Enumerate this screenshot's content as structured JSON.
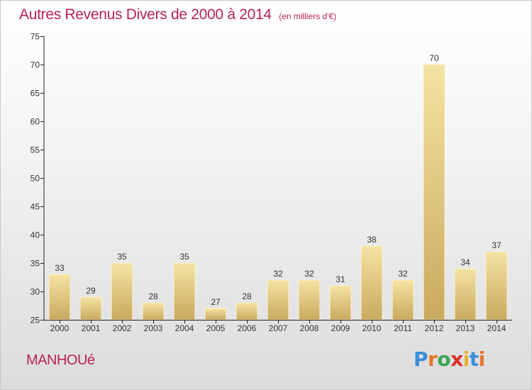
{
  "title": "Autres Revenus Divers de 2000 à 2014",
  "subtitle": "(en milliers d'€)",
  "commune": "MANHOUé",
  "logo": {
    "text": "Proxiti",
    "letters": [
      "P",
      "r",
      "o",
      "x",
      "i",
      "t",
      "i"
    ],
    "colors": [
      "#3a8ed8",
      "#e8742a",
      "#3aa655",
      "#d8322a",
      "#e8b12a",
      "#3a8ed8",
      "#e8742a"
    ]
  },
  "colors": {
    "title": "#b8225a",
    "bar_light": "#f5e3a3",
    "bar_dark": "#c9a95e",
    "axis": "#222222"
  },
  "chart_data": {
    "type": "bar",
    "categories": [
      "2000",
      "2001",
      "2002",
      "2003",
      "2004",
      "2005",
      "2006",
      "2007",
      "2008",
      "2009",
      "2010",
      "2011",
      "2012",
      "2013",
      "2014"
    ],
    "values": [
      33,
      29,
      35,
      28,
      35,
      27,
      28,
      32,
      32,
      31,
      38,
      32,
      70,
      34,
      37
    ],
    "ylim": [
      25,
      75
    ],
    "yticks": [
      25,
      30,
      35,
      40,
      45,
      50,
      55,
      60,
      65,
      70,
      75
    ],
    "grid": false,
    "data_labels": true
  }
}
